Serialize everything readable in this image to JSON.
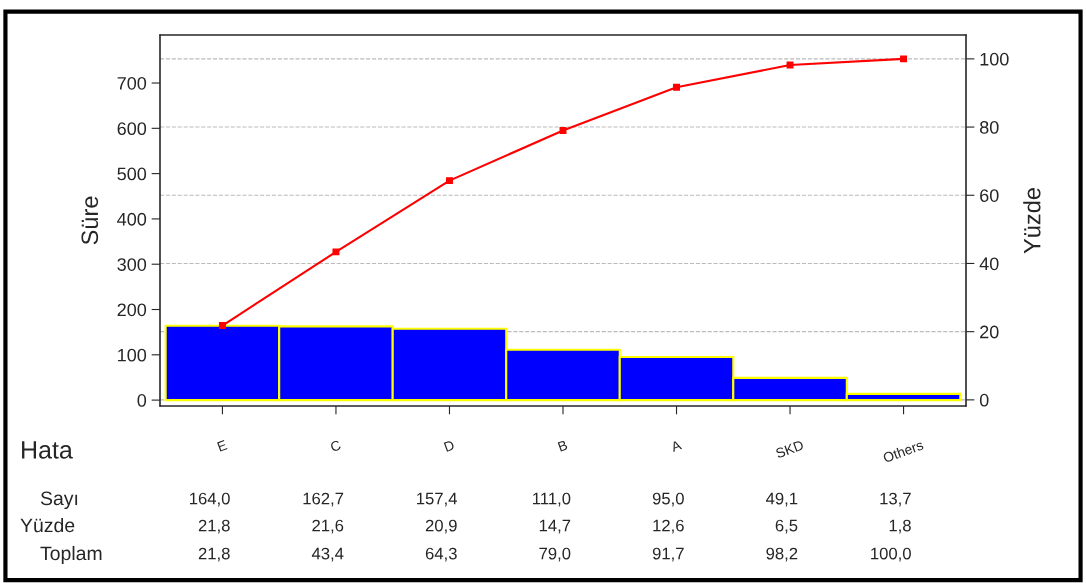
{
  "chart_data": {
    "type": "bar",
    "xlabel": "Hata",
    "ylabel": "Süre",
    "y2label": "Yüzde",
    "categories": [
      "E",
      "C",
      "D",
      "B",
      "A",
      "SKD",
      "Others"
    ],
    "series": [
      {
        "color": "#0000ff",
        "values": [
          164.0,
          162.7,
          157.4,
          111.0,
          95.0,
          49.1,
          13.7
        ],
        "value_labels": [
          "164,0",
          "162,7",
          "157,4",
          "111,0",
          "95,0",
          "49,1",
          "13,7"
        ]
      },
      {
        "type": "line",
        "axis": "y2",
        "color": "#ff0000",
        "marker": "square",
        "values": [
          21.8,
          43.4,
          64.3,
          79.0,
          91.7,
          98.2,
          100.0
        ],
        "value_labels": [
          "21,8",
          "43,4",
          "64,3",
          "79,0",
          "91,7",
          "98,2",
          "100,0"
        ]
      }
    ],
    "annotations": [
      "Sayı",
      "Yüzde",
      "Toplam",
      "21,8",
      "21,6",
      "20,9",
      "14,7",
      "12,6",
      "6,5",
      "1,8"
    ],
    "ylim": [
      -13,
      806
    ],
    "yticks": [
      0,
      100,
      200,
      300,
      400,
      500,
      600,
      700
    ],
    "y2lim": [
      -1.8,
      107
    ],
    "y2ticks": [
      0,
      20,
      40,
      60,
      80,
      100
    ],
    "grid": "y2",
    "legend": false
  }
}
